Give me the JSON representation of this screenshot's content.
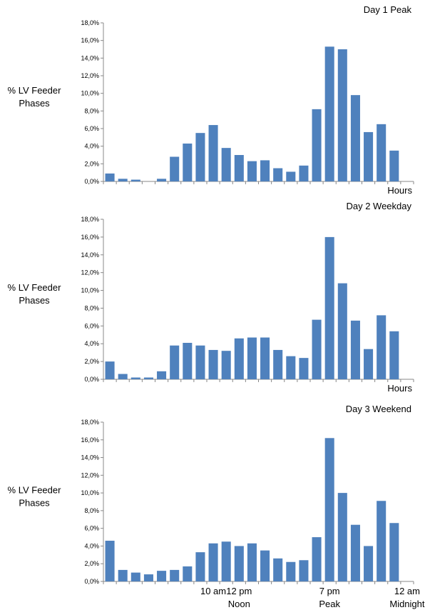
{
  "chart_data": [
    {
      "type": "bar",
      "title": "Day 1 Peak",
      "ylabel": "% LV Feeder Phases",
      "xlabel": "Hours",
      "ylim": [
        0,
        18
      ],
      "ytick_labels": [
        "0,0%",
        "2,0%",
        "4,0%",
        "6,0%",
        "8,0%",
        "10,0%",
        "12,0%",
        "14,0%",
        "16,0%",
        "18,0%"
      ],
      "color": "#4f81bd",
      "x": [
        1,
        2,
        3,
        4,
        5,
        6,
        7,
        8,
        9,
        10,
        11,
        12,
        13,
        14,
        15,
        16,
        17,
        18,
        19,
        20,
        21,
        22,
        23,
        24
      ],
      "values": [
        0.9,
        0.3,
        0.2,
        0.0,
        0.3,
        2.8,
        4.3,
        5.5,
        6.4,
        3.8,
        3.0,
        2.3,
        2.4,
        1.5,
        1.1,
        1.8,
        8.2,
        15.3,
        15.0,
        9.8,
        5.6,
        6.5,
        3.5,
        0.0
      ]
    },
    {
      "type": "bar",
      "title": "Day 2 Weekday",
      "ylabel": "% LV Feeder Phases",
      "xlabel": "Hours",
      "ylim": [
        0,
        18
      ],
      "ytick_labels": [
        "0,0%",
        "2,0%",
        "4,0%",
        "6,0%",
        "8,0%",
        "10,0%",
        "12,0%",
        "14,0%",
        "16,0%",
        "18,0%"
      ],
      "color": "#4f81bd",
      "x": [
        1,
        2,
        3,
        4,
        5,
        6,
        7,
        8,
        9,
        10,
        11,
        12,
        13,
        14,
        15,
        16,
        17,
        18,
        19,
        20,
        21,
        22,
        23,
        24
      ],
      "values": [
        2.0,
        0.6,
        0.2,
        0.2,
        0.9,
        3.8,
        4.1,
        3.8,
        3.3,
        3.2,
        4.6,
        4.7,
        4.7,
        3.3,
        2.6,
        2.4,
        6.7,
        16.0,
        10.8,
        6.6,
        3.4,
        7.2,
        5.4,
        0.0
      ]
    },
    {
      "type": "bar",
      "title": "Day 3 Weekend",
      "ylabel": "% LV Feeder Phases",
      "ylim": [
        0,
        18
      ],
      "ytick_labels": [
        "0,0%",
        "2,0%",
        "4,0%",
        "6,0%",
        "8,0%",
        "10,0%",
        "12,0%",
        "14,0%",
        "16,0%",
        "18,0%"
      ],
      "color": "#4f81bd",
      "x": [
        1,
        2,
        3,
        4,
        5,
        6,
        7,
        8,
        9,
        10,
        11,
        12,
        13,
        14,
        15,
        16,
        17,
        18,
        19,
        20,
        21,
        22,
        23,
        24
      ],
      "values": [
        4.6,
        1.3,
        1.0,
        0.8,
        1.2,
        1.3,
        1.7,
        3.3,
        4.3,
        4.5,
        4.0,
        4.3,
        3.5,
        2.6,
        2.2,
        2.4,
        5.0,
        16.2,
        10.0,
        6.4,
        4.0,
        9.1,
        6.6,
        0.0
      ],
      "annotations": [
        {
          "x": 9,
          "label": "10 am"
        },
        {
          "x": 11,
          "label": "12 pm",
          "sub": "Noon"
        },
        {
          "x": 18,
          "label": "7 pm",
          "sub": "Peak"
        },
        {
          "x": 24,
          "label": "12 am",
          "sub": "Midnight"
        }
      ]
    }
  ]
}
